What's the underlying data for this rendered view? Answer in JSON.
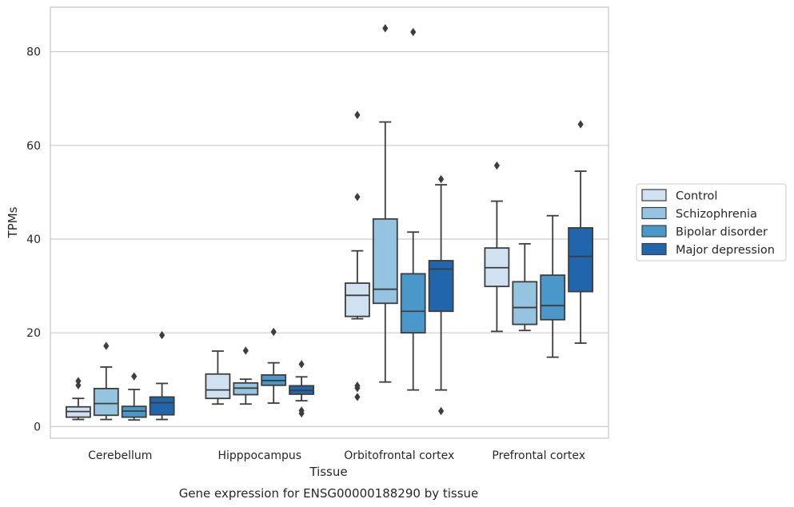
{
  "caption": "Gene expression for ENSG00000188290 by tissue",
  "chart_data": {
    "type": "boxplot",
    "xlabel": "Tissue",
    "ylabel": "TPMs",
    "ylim": [
      -2.5,
      89.5
    ],
    "yticks": [
      0,
      20,
      40,
      60,
      80
    ],
    "grid": "horizontal",
    "legend_position": "outside-right",
    "categories": [
      "Cerebellum",
      "Hipppocampus",
      "Orbitofrontal cortex",
      "Prefrontal cortex"
    ],
    "series": [
      {
        "name": "Control",
        "color": "#d0e1f2",
        "boxes": [
          {
            "whisker_low": 1.5,
            "q1": 2.0,
            "median": 3.2,
            "q3": 4.2,
            "whisker_high": 6.0,
            "outliers": [
              8.8,
              9.7
            ]
          },
          {
            "whisker_low": 4.8,
            "q1": 6.0,
            "median": 7.8,
            "q3": 11.2,
            "whisker_high": 16.1,
            "outliers": []
          },
          {
            "whisker_low": 23.0,
            "q1": 23.5,
            "median": 28.0,
            "q3": 30.6,
            "whisker_high": 37.5,
            "outliers": [
              66.5,
              49.0,
              8.7,
              8.2,
              6.3
            ]
          },
          {
            "whisker_low": 20.3,
            "q1": 29.9,
            "median": 33.9,
            "q3": 38.1,
            "whisker_high": 48.1,
            "outliers": [
              55.7
            ]
          }
        ]
      },
      {
        "name": "Schizophrenia",
        "color": "#94c4df",
        "boxes": [
          {
            "whisker_low": 1.5,
            "q1": 2.4,
            "median": 4.9,
            "q3": 8.1,
            "whisker_high": 12.7,
            "outliers": [
              17.2
            ]
          },
          {
            "whisker_low": 4.8,
            "q1": 6.8,
            "median": 8.2,
            "q3": 9.3,
            "whisker_high": 10.1,
            "outliers": [
              16.2
            ]
          },
          {
            "whisker_low": 9.5,
            "q1": 26.3,
            "median": 29.3,
            "q3": 44.3,
            "whisker_high": 65.0,
            "outliers": [
              85.0
            ]
          },
          {
            "whisker_low": 20.5,
            "q1": 21.8,
            "median": 25.4,
            "q3": 30.9,
            "whisker_high": 39.0,
            "outliers": []
          }
        ]
      },
      {
        "name": "Bipolar disorder",
        "color": "#4a98c9",
        "boxes": [
          {
            "whisker_low": 1.4,
            "q1": 2.0,
            "median": 3.3,
            "q3": 4.3,
            "whisker_high": 7.9,
            "outliers": [
              10.7
            ]
          },
          {
            "whisker_low": 5.0,
            "q1": 8.8,
            "median": 9.8,
            "q3": 11.0,
            "whisker_high": 13.6,
            "outliers": [
              20.2
            ]
          },
          {
            "whisker_low": 7.8,
            "q1": 20.0,
            "median": 24.6,
            "q3": 32.6,
            "whisker_high": 41.5,
            "outliers": [
              84.2
            ]
          },
          {
            "whisker_low": 14.8,
            "q1": 22.8,
            "median": 25.8,
            "q3": 32.3,
            "whisker_high": 45.0,
            "outliers": []
          }
        ]
      },
      {
        "name": "Major depression",
        "color": "#2166ac",
        "boxes": [
          {
            "whisker_low": 1.5,
            "q1": 2.5,
            "median": 5.1,
            "q3": 6.3,
            "whisker_high": 9.2,
            "outliers": [
              19.5
            ]
          },
          {
            "whisker_low": 5.5,
            "q1": 6.9,
            "median": 7.7,
            "q3": 8.7,
            "whisker_high": 10.6,
            "outliers": [
              13.3,
              3.4,
              2.8
            ]
          },
          {
            "whisker_low": 7.8,
            "q1": 24.6,
            "median": 33.6,
            "q3": 35.4,
            "whisker_high": 51.6,
            "outliers": [
              52.8,
              3.3
            ]
          },
          {
            "whisker_low": 17.8,
            "q1": 28.8,
            "median": 36.3,
            "q3": 42.4,
            "whisker_high": 54.5,
            "outliers": [
              64.5
            ]
          }
        ]
      }
    ]
  }
}
